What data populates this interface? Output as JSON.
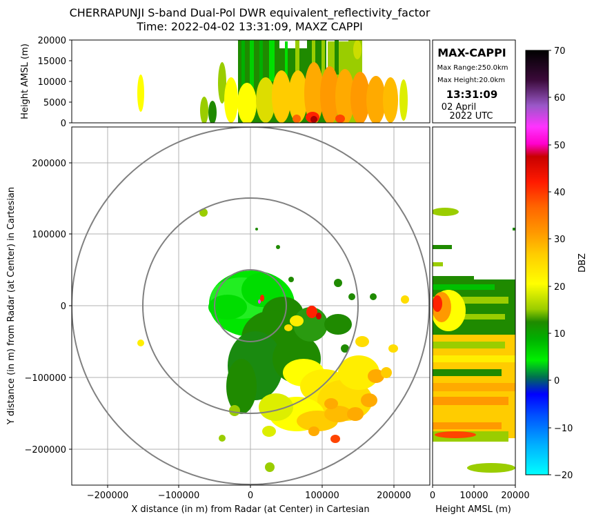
{
  "title": {
    "line1": "CHERRAPUNJI S-band Dual-Pol DWR equivalent_reflectivity_factor",
    "line2": "Time: 2022-04-02 13:31:09, MAXZ CAPPI"
  },
  "info_box": {
    "heading": "MAX-CAPPI",
    "max_range": "Max Range:250.0km",
    "max_height": "Max Height:20.0km",
    "time": "13:31:09",
    "date": "02 April",
    "year_tz": "2022 UTC"
  },
  "colorbar": {
    "label": "DBZ",
    "ticks": [
      "70",
      "60",
      "50",
      "40",
      "30",
      "20",
      "10",
      "0",
      "−10",
      "−20"
    ]
  },
  "chart_data": [
    {
      "type": "heatmap",
      "panel": "top",
      "xlim": [
        -250000,
        250000
      ],
      "ylim": [
        0,
        20000
      ],
      "ylabel": "Height AMSL (m)",
      "yticks": [
        "20000",
        "15000",
        "10000",
        "5000",
        "0"
      ]
    },
    {
      "type": "heatmap",
      "panel": "main",
      "xlim": [
        -250000,
        250000
      ],
      "ylim": [
        -250000,
        250000
      ],
      "xlabel": "X distance (in m) from Radar (at Center) in Cartesian",
      "ylabel": "Y distance (in m) from Radar (at Center) in Cartesian",
      "xticks": [
        "−200000",
        "−100000",
        "0",
        "100000",
        "200000"
      ],
      "yticks": [
        "200000",
        "100000",
        "0",
        "−100000",
        "−200000"
      ],
      "range_rings_m": [
        50000,
        150000,
        250000
      ],
      "grid": true
    },
    {
      "type": "heatmap",
      "panel": "right",
      "xlim": [
        0,
        20000
      ],
      "ylim": [
        -250000,
        250000
      ],
      "xlabel": "Height AMSL (m)",
      "xticks": [
        "0",
        "10000",
        "20000"
      ]
    }
  ]
}
